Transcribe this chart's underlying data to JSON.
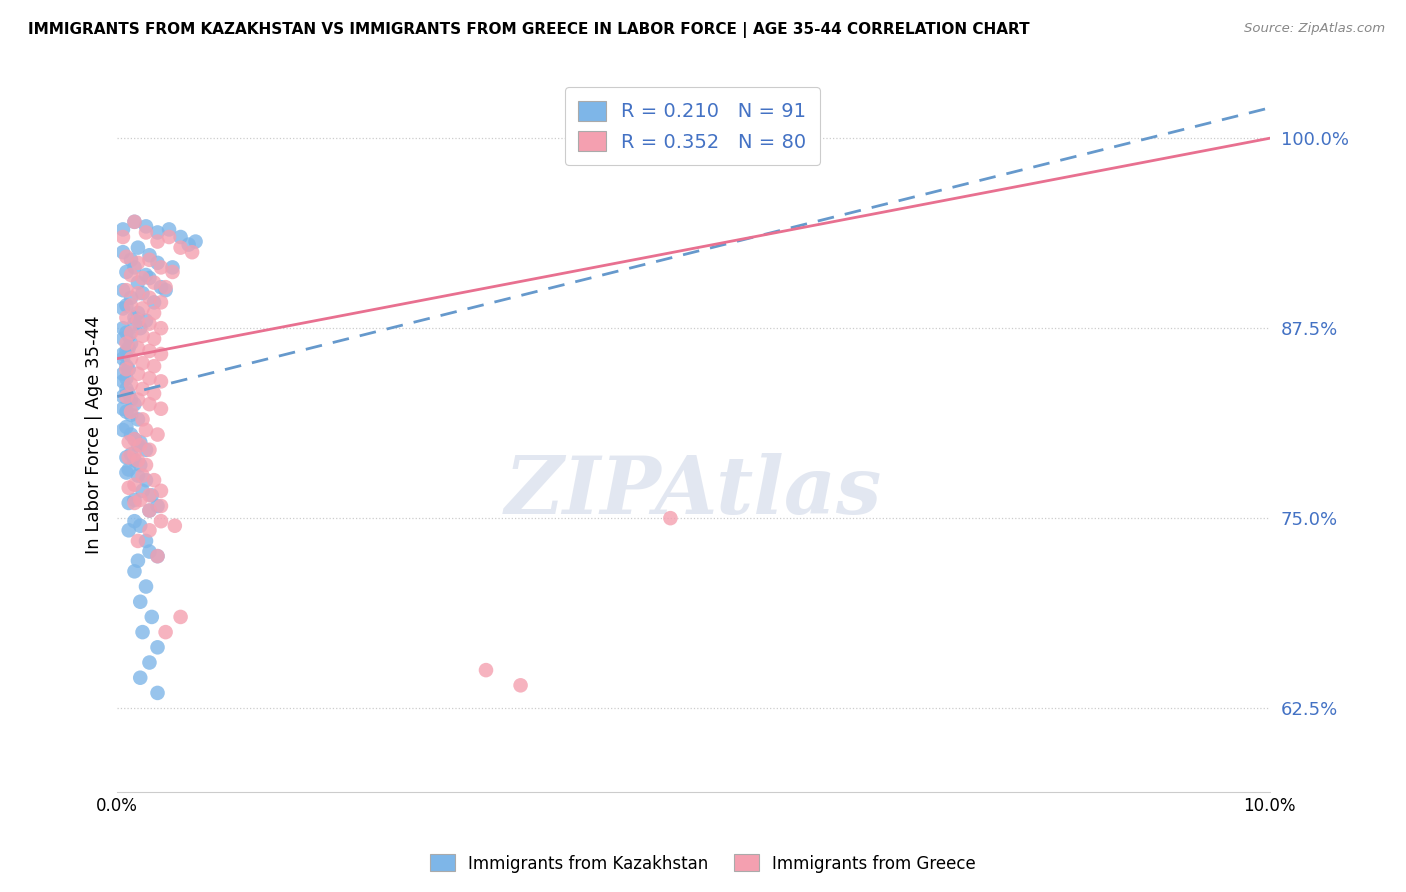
{
  "title": "IMMIGRANTS FROM KAZAKHSTAN VS IMMIGRANTS FROM GREECE IN LABOR FORCE | AGE 35-44 CORRELATION CHART",
  "source": "Source: ZipAtlas.com",
  "ylabel": "In Labor Force | Age 35-44",
  "xlim": [
    0.0,
    10.0
  ],
  "ylim": [
    57.0,
    104.0
  ],
  "yticks": [
    62.5,
    75.0,
    87.5,
    100.0
  ],
  "ytick_labels": [
    "62.5%",
    "75.0%",
    "87.5%",
    "100.0%"
  ],
  "legend_R_kaz": "R = 0.210",
  "legend_N_kaz": "N = 91",
  "legend_R_gre": "R = 0.352",
  "legend_N_gre": "N = 80",
  "legend_label_kaz": "Immigrants from Kazakhstan",
  "legend_label_gre": "Immigrants from Greece",
  "color_kaz": "#7EB6E8",
  "color_gre": "#F4A0B0",
  "color_kaz_line": "#6699CC",
  "color_gre_line": "#E87090",
  "watermark": "ZIPAtlas",
  "kaz_line": [
    0.0,
    10.0,
    83.0,
    102.0
  ],
  "gre_line": [
    0.0,
    10.0,
    85.5,
    100.0
  ],
  "kazakhstan_points": [
    [
      0.05,
      94.0
    ],
    [
      0.15,
      94.5
    ],
    [
      0.25,
      94.2
    ],
    [
      0.35,
      93.8
    ],
    [
      0.45,
      94.0
    ],
    [
      0.55,
      93.5
    ],
    [
      0.62,
      93.0
    ],
    [
      0.68,
      93.2
    ],
    [
      0.05,
      92.5
    ],
    [
      0.12,
      92.0
    ],
    [
      0.18,
      92.8
    ],
    [
      0.28,
      92.3
    ],
    [
      0.15,
      91.5
    ],
    [
      0.25,
      91.0
    ],
    [
      0.35,
      91.8
    ],
    [
      0.08,
      91.2
    ],
    [
      0.18,
      90.5
    ],
    [
      0.28,
      90.8
    ],
    [
      0.38,
      90.2
    ],
    [
      0.48,
      91.5
    ],
    [
      0.05,
      90.0
    ],
    [
      0.12,
      89.5
    ],
    [
      0.22,
      89.8
    ],
    [
      0.32,
      89.2
    ],
    [
      0.42,
      90.0
    ],
    [
      0.08,
      89.0
    ],
    [
      0.18,
      88.5
    ],
    [
      0.05,
      88.8
    ],
    [
      0.15,
      88.2
    ],
    [
      0.25,
      88.0
    ],
    [
      0.05,
      87.5
    ],
    [
      0.1,
      87.0
    ],
    [
      0.15,
      87.8
    ],
    [
      0.08,
      87.2
    ],
    [
      0.2,
      87.5
    ],
    [
      0.05,
      86.8
    ],
    [
      0.12,
      86.5
    ],
    [
      0.08,
      86.0
    ],
    [
      0.05,
      85.8
    ],
    [
      0.1,
      86.2
    ],
    [
      0.05,
      85.5
    ],
    [
      0.08,
      85.0
    ],
    [
      0.05,
      84.5
    ],
    [
      0.1,
      84.8
    ],
    [
      0.08,
      84.2
    ],
    [
      0.05,
      84.0
    ],
    [
      0.08,
      83.5
    ],
    [
      0.05,
      83.0
    ],
    [
      0.1,
      83.2
    ],
    [
      0.12,
      82.8
    ],
    [
      0.15,
      82.5
    ],
    [
      0.08,
      82.0
    ],
    [
      0.05,
      82.2
    ],
    [
      0.18,
      81.5
    ],
    [
      0.12,
      81.8
    ],
    [
      0.08,
      81.0
    ],
    [
      0.05,
      80.8
    ],
    [
      0.12,
      80.5
    ],
    [
      0.2,
      80.0
    ],
    [
      0.15,
      80.2
    ],
    [
      0.25,
      79.5
    ],
    [
      0.18,
      79.8
    ],
    [
      0.12,
      79.2
    ],
    [
      0.08,
      79.0
    ],
    [
      0.2,
      78.5
    ],
    [
      0.15,
      78.8
    ],
    [
      0.1,
      78.2
    ],
    [
      0.08,
      78.0
    ],
    [
      0.25,
      77.5
    ],
    [
      0.18,
      77.8
    ],
    [
      0.3,
      76.5
    ],
    [
      0.22,
      76.8
    ],
    [
      0.15,
      76.2
    ],
    [
      0.1,
      76.0
    ],
    [
      0.28,
      75.5
    ],
    [
      0.35,
      75.8
    ],
    [
      0.2,
      74.5
    ],
    [
      0.15,
      74.8
    ],
    [
      0.1,
      74.2
    ],
    [
      0.25,
      73.5
    ],
    [
      0.35,
      72.5
    ],
    [
      0.28,
      72.8
    ],
    [
      0.18,
      72.2
    ],
    [
      0.15,
      71.5
    ],
    [
      0.25,
      70.5
    ],
    [
      0.2,
      69.5
    ],
    [
      0.3,
      68.5
    ],
    [
      0.22,
      67.5
    ],
    [
      0.35,
      66.5
    ],
    [
      0.28,
      65.5
    ],
    [
      0.2,
      64.5
    ],
    [
      0.35,
      63.5
    ]
  ],
  "greece_points": [
    [
      0.05,
      93.5
    ],
    [
      0.15,
      94.5
    ],
    [
      0.25,
      93.8
    ],
    [
      0.35,
      93.2
    ],
    [
      0.45,
      93.5
    ],
    [
      0.55,
      92.8
    ],
    [
      0.65,
      92.5
    ],
    [
      0.08,
      92.2
    ],
    [
      0.18,
      91.8
    ],
    [
      0.28,
      92.0
    ],
    [
      0.38,
      91.5
    ],
    [
      0.48,
      91.2
    ],
    [
      0.12,
      91.0
    ],
    [
      0.22,
      90.8
    ],
    [
      0.32,
      90.5
    ],
    [
      0.42,
      90.2
    ],
    [
      0.08,
      90.0
    ],
    [
      0.18,
      89.8
    ],
    [
      0.28,
      89.5
    ],
    [
      0.38,
      89.2
    ],
    [
      0.12,
      89.0
    ],
    [
      0.22,
      88.8
    ],
    [
      0.32,
      88.5
    ],
    [
      0.08,
      88.2
    ],
    [
      0.18,
      88.0
    ],
    [
      0.28,
      87.8
    ],
    [
      0.38,
      87.5
    ],
    [
      0.12,
      87.2
    ],
    [
      0.22,
      87.0
    ],
    [
      0.32,
      86.8
    ],
    [
      0.08,
      86.5
    ],
    [
      0.18,
      86.2
    ],
    [
      0.28,
      86.0
    ],
    [
      0.38,
      85.8
    ],
    [
      0.12,
      85.5
    ],
    [
      0.22,
      85.2
    ],
    [
      0.32,
      85.0
    ],
    [
      0.08,
      84.8
    ],
    [
      0.18,
      84.5
    ],
    [
      0.28,
      84.2
    ],
    [
      0.38,
      84.0
    ],
    [
      0.12,
      83.8
    ],
    [
      0.22,
      83.5
    ],
    [
      0.32,
      83.2
    ],
    [
      0.08,
      83.0
    ],
    [
      0.18,
      82.8
    ],
    [
      0.28,
      82.5
    ],
    [
      0.38,
      82.2
    ],
    [
      0.12,
      82.0
    ],
    [
      0.22,
      81.5
    ],
    [
      0.35,
      80.5
    ],
    [
      0.25,
      80.8
    ],
    [
      0.15,
      80.2
    ],
    [
      0.1,
      80.0
    ],
    [
      0.28,
      79.5
    ],
    [
      0.2,
      79.8
    ],
    [
      0.15,
      79.2
    ],
    [
      0.1,
      79.0
    ],
    [
      0.25,
      78.5
    ],
    [
      0.18,
      78.8
    ],
    [
      0.32,
      77.5
    ],
    [
      0.22,
      77.8
    ],
    [
      0.15,
      77.2
    ],
    [
      0.1,
      77.0
    ],
    [
      0.28,
      76.5
    ],
    [
      0.38,
      76.8
    ],
    [
      0.2,
      76.2
    ],
    [
      0.15,
      76.0
    ],
    [
      0.28,
      75.5
    ],
    [
      0.38,
      75.8
    ],
    [
      0.5,
      74.5
    ],
    [
      0.38,
      74.8
    ],
    [
      0.28,
      74.2
    ],
    [
      0.18,
      73.5
    ],
    [
      0.35,
      72.5
    ],
    [
      0.55,
      68.5
    ],
    [
      0.42,
      67.5
    ],
    [
      4.8,
      75.0
    ],
    [
      3.2,
      65.0
    ],
    [
      3.5,
      64.0
    ]
  ]
}
